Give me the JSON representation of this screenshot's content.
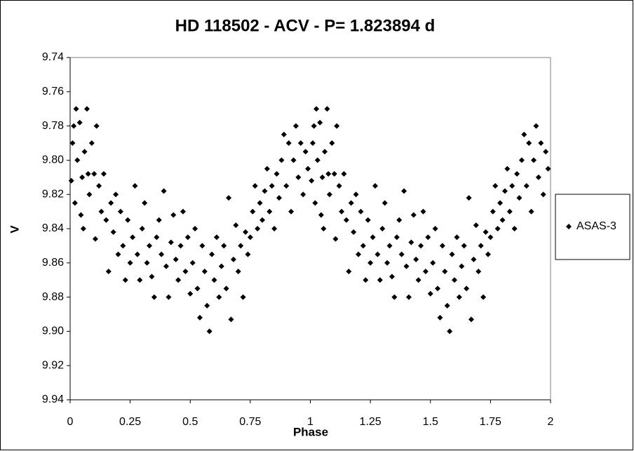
{
  "chart_data": {
    "type": "scatter",
    "title": "HD 118502 - ACV - P= 1.823894 d",
    "x_label": "Phase",
    "y_label": "V",
    "xlim": [
      0,
      2
    ],
    "xticks": [
      0,
      0.25,
      0.5,
      0.75,
      1,
      1.25,
      1.5,
      1.75,
      2
    ],
    "ylim": [
      9.94,
      9.74
    ],
    "yticks": [
      9.94,
      9.92,
      {
        "value": 9.9,
        "label": "9.90"
      },
      9.88,
      9.86,
      9.84,
      9.82,
      {
        "value": 9.8,
        "label": "9.80"
      },
      9.78,
      9.76,
      9.74
    ],
    "grid": false,
    "legend": "right",
    "series": [
      {
        "name": "ASAS-3",
        "color": "#000000",
        "x": [
          0.005,
          0.01,
          0.015,
          0.02,
          0.025,
          0.03,
          0.04,
          0.045,
          0.05,
          0.055,
          0.06,
          0.07,
          0.075,
          0.08,
          0.09,
          0.1,
          0.105,
          0.11,
          0.12,
          0.13,
          0.14,
          0.15,
          0.16,
          0.17,
          0.18,
          0.19,
          0.2,
          0.21,
          0.22,
          0.23,
          0.24,
          0.25,
          0.26,
          0.27,
          0.28,
          0.29,
          0.3,
          0.31,
          0.32,
          0.33,
          0.34,
          0.35,
          0.36,
          0.37,
          0.38,
          0.39,
          0.4,
          0.41,
          0.42,
          0.43,
          0.44,
          0.45,
          0.46,
          0.47,
          0.48,
          0.49,
          0.5,
          0.51,
          0.52,
          0.53,
          0.54,
          0.55,
          0.56,
          0.57,
          0.58,
          0.59,
          0.6,
          0.61,
          0.62,
          0.63,
          0.64,
          0.65,
          0.66,
          0.67,
          0.68,
          0.69,
          0.7,
          0.71,
          0.72,
          0.73,
          0.74,
          0.75,
          0.76,
          0.77,
          0.78,
          0.79,
          0.8,
          0.81,
          0.82,
          0.83,
          0.84,
          0.85,
          0.86,
          0.87,
          0.88,
          0.89,
          0.9,
          0.91,
          0.92,
          0.93,
          0.94,
          0.95,
          0.96,
          0.97,
          0.98,
          0.99,
          1.005,
          1.01,
          1.015,
          1.02,
          1.025,
          1.03,
          1.04,
          1.045,
          1.05,
          1.055,
          1.06,
          1.07,
          1.075,
          1.08,
          1.09,
          1.1,
          1.105,
          1.11,
          1.12,
          1.13,
          1.14,
          1.15,
          1.16,
          1.17,
          1.18,
          1.19,
          1.2,
          1.21,
          1.22,
          1.23,
          1.24,
          1.25,
          1.26,
          1.27,
          1.28,
          1.29,
          1.3,
          1.31,
          1.32,
          1.33,
          1.34,
          1.35,
          1.36,
          1.37,
          1.38,
          1.39,
          1.4,
          1.41,
          1.42,
          1.43,
          1.44,
          1.45,
          1.46,
          1.47,
          1.48,
          1.49,
          1.5,
          1.51,
          1.52,
          1.53,
          1.54,
          1.55,
          1.56,
          1.57,
          1.58,
          1.59,
          1.6,
          1.61,
          1.62,
          1.63,
          1.64,
          1.65,
          1.66,
          1.67,
          1.68,
          1.69,
          1.7,
          1.71,
          1.72,
          1.73,
          1.74,
          1.75,
          1.76,
          1.77,
          1.78,
          1.79,
          1.8,
          1.81,
          1.82,
          1.83,
          1.84,
          1.85,
          1.86,
          1.87,
          1.88,
          1.89,
          1.9,
          1.91,
          1.92,
          1.93,
          1.94,
          1.95,
          1.96,
          1.97,
          1.98,
          1.99
        ],
        "values": [
          9.812,
          9.79,
          9.78,
          9.825,
          9.77,
          9.8,
          9.778,
          9.832,
          9.81,
          9.84,
          9.795,
          9.77,
          9.808,
          9.82,
          9.79,
          9.808,
          9.846,
          9.78,
          9.815,
          9.83,
          9.808,
          9.835,
          9.865,
          9.825,
          9.842,
          9.82,
          9.855,
          9.83,
          9.85,
          9.87,
          9.835,
          9.86,
          9.845,
          9.815,
          9.855,
          9.87,
          9.84,
          9.825,
          9.86,
          9.85,
          9.868,
          9.88,
          9.845,
          9.835,
          9.855,
          9.818,
          9.862,
          9.88,
          9.848,
          9.832,
          9.858,
          9.87,
          9.85,
          9.83,
          9.865,
          9.845,
          9.878,
          9.86,
          9.84,
          9.875,
          9.892,
          9.85,
          9.865,
          9.885,
          9.9,
          9.855,
          9.87,
          9.845,
          9.88,
          9.862,
          9.85,
          9.875,
          9.822,
          9.893,
          9.858,
          9.838,
          9.865,
          9.85,
          9.88,
          9.842,
          9.855,
          9.845,
          9.83,
          9.815,
          9.84,
          9.825,
          9.835,
          9.818,
          9.805,
          9.83,
          9.815,
          9.84,
          9.808,
          9.822,
          9.8,
          9.785,
          9.815,
          9.79,
          9.83,
          9.8,
          9.78,
          9.81,
          9.79,
          9.82,
          9.795,
          9.805,
          9.812,
          9.79,
          9.78,
          9.825,
          9.77,
          9.8,
          9.778,
          9.832,
          9.81,
          9.84,
          9.795,
          9.77,
          9.808,
          9.82,
          9.79,
          9.808,
          9.846,
          9.78,
          9.815,
          9.83,
          9.808,
          9.835,
          9.865,
          9.825,
          9.842,
          9.82,
          9.855,
          9.83,
          9.85,
          9.87,
          9.835,
          9.86,
          9.845,
          9.815,
          9.855,
          9.87,
          9.84,
          9.825,
          9.86,
          9.85,
          9.868,
          9.88,
          9.845,
          9.835,
          9.855,
          9.818,
          9.862,
          9.88,
          9.848,
          9.832,
          9.858,
          9.87,
          9.85,
          9.83,
          9.865,
          9.845,
          9.878,
          9.86,
          9.84,
          9.875,
          9.892,
          9.85,
          9.865,
          9.885,
          9.9,
          9.855,
          9.87,
          9.845,
          9.88,
          9.862,
          9.85,
          9.875,
          9.822,
          9.893,
          9.858,
          9.838,
          9.865,
          9.85,
          9.88,
          9.842,
          9.855,
          9.845,
          9.83,
          9.815,
          9.84,
          9.825,
          9.835,
          9.818,
          9.805,
          9.83,
          9.815,
          9.84,
          9.808,
          9.822,
          9.8,
          9.785,
          9.815,
          9.79,
          9.83,
          9.8,
          9.78,
          9.81,
          9.79,
          9.82,
          9.795,
          9.805
        ]
      }
    ]
  }
}
